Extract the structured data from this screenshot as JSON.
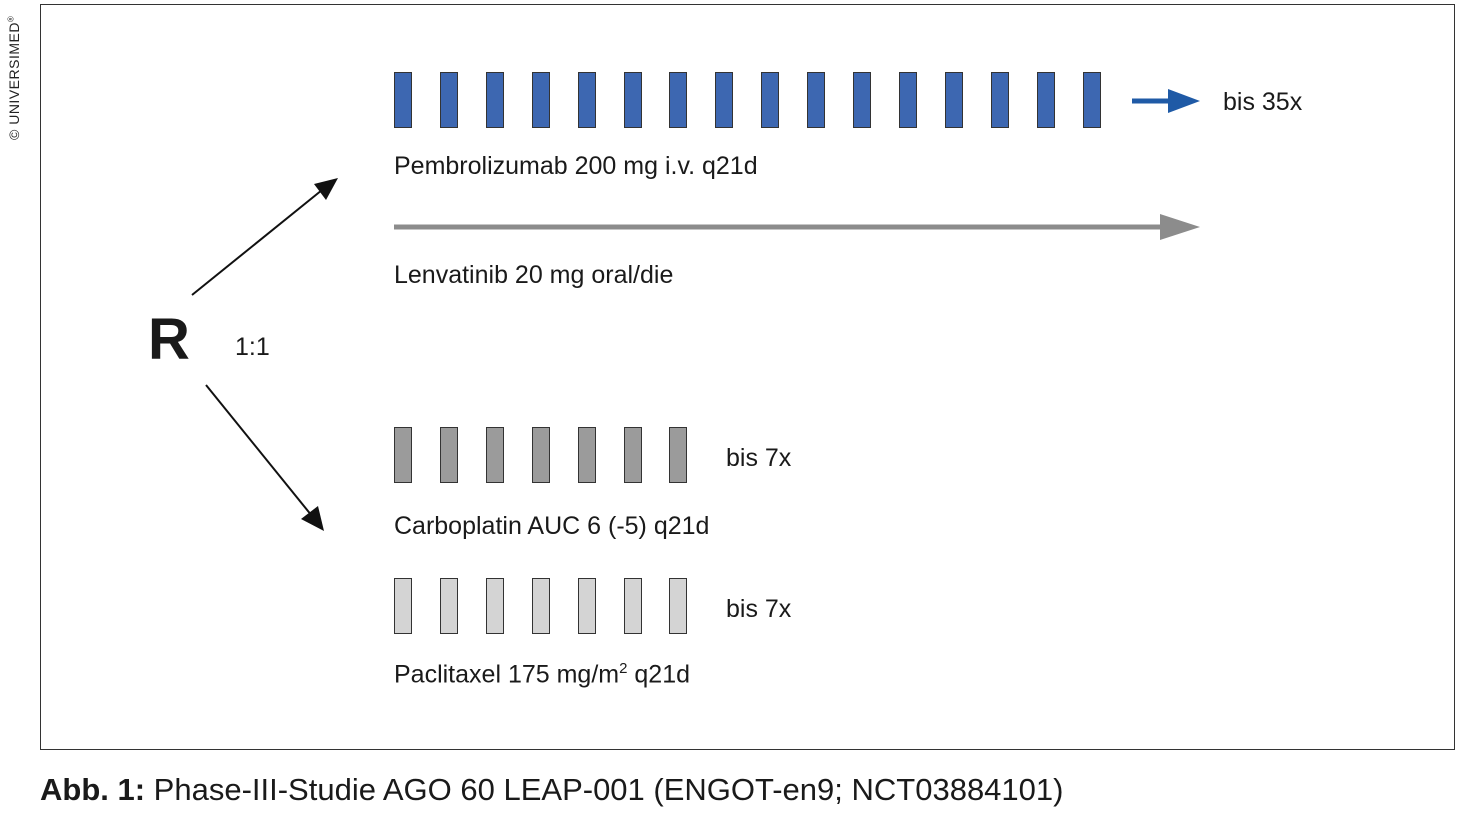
{
  "copyright": {
    "text": "© UNIVERSIMED",
    "mark": "®"
  },
  "randomization": {
    "letter": "R",
    "ratio": "1:1"
  },
  "arm_a": {
    "pembro": {
      "label": "Pembrolizumab 200 mg i.v. q21d",
      "cycles": "bis 35x",
      "block_count": 16,
      "color": "#3d67b1"
    },
    "lenva": {
      "label": "Lenvatinib 20 mg oral/die",
      "arrow_color": "#8c8c8c"
    },
    "continue_arrow_color": "#1f5aa6"
  },
  "arm_b": {
    "carbo": {
      "label": "Carboplatin AUC 6 (-5) q21d",
      "cycles": "bis 7x",
      "block_count": 7,
      "color": "#9b9b9b"
    },
    "pacli": {
      "label_pre": "Paclitaxel 175 mg/m",
      "label_sup": "2",
      "label_post": " q21d",
      "cycles": "bis 7x",
      "block_count": 7,
      "color": "#d4d4d4"
    }
  },
  "caption": {
    "prefix": "Abb. 1:",
    "text": " Phase-III-Studie AGO 60 LEAP-001 (ENGOT-en9; NCT03884101)"
  }
}
